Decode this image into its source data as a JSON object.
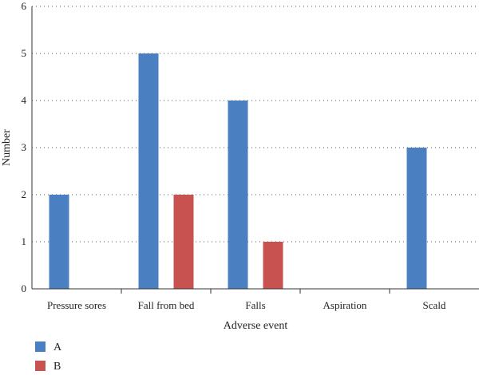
{
  "chart_data": {
    "type": "bar",
    "title": "",
    "xlabel": "Adverse event",
    "ylabel": "Number",
    "categories": [
      "Pressure sores",
      "Fall from bed",
      "Falls",
      "Aspiration",
      "Scald"
    ],
    "series": [
      {
        "name": "A",
        "color": "#4a7fc1",
        "values": [
          2,
          5,
          4,
          0,
          3
        ]
      },
      {
        "name": "B",
        "color": "#c85250",
        "values": [
          0,
          2,
          1,
          0,
          0
        ]
      }
    ],
    "ylim": [
      0,
      6
    ],
    "yticks": [
      0,
      1,
      2,
      3,
      4,
      5,
      6
    ],
    "grid": true,
    "legend_position": "bottom-left"
  }
}
